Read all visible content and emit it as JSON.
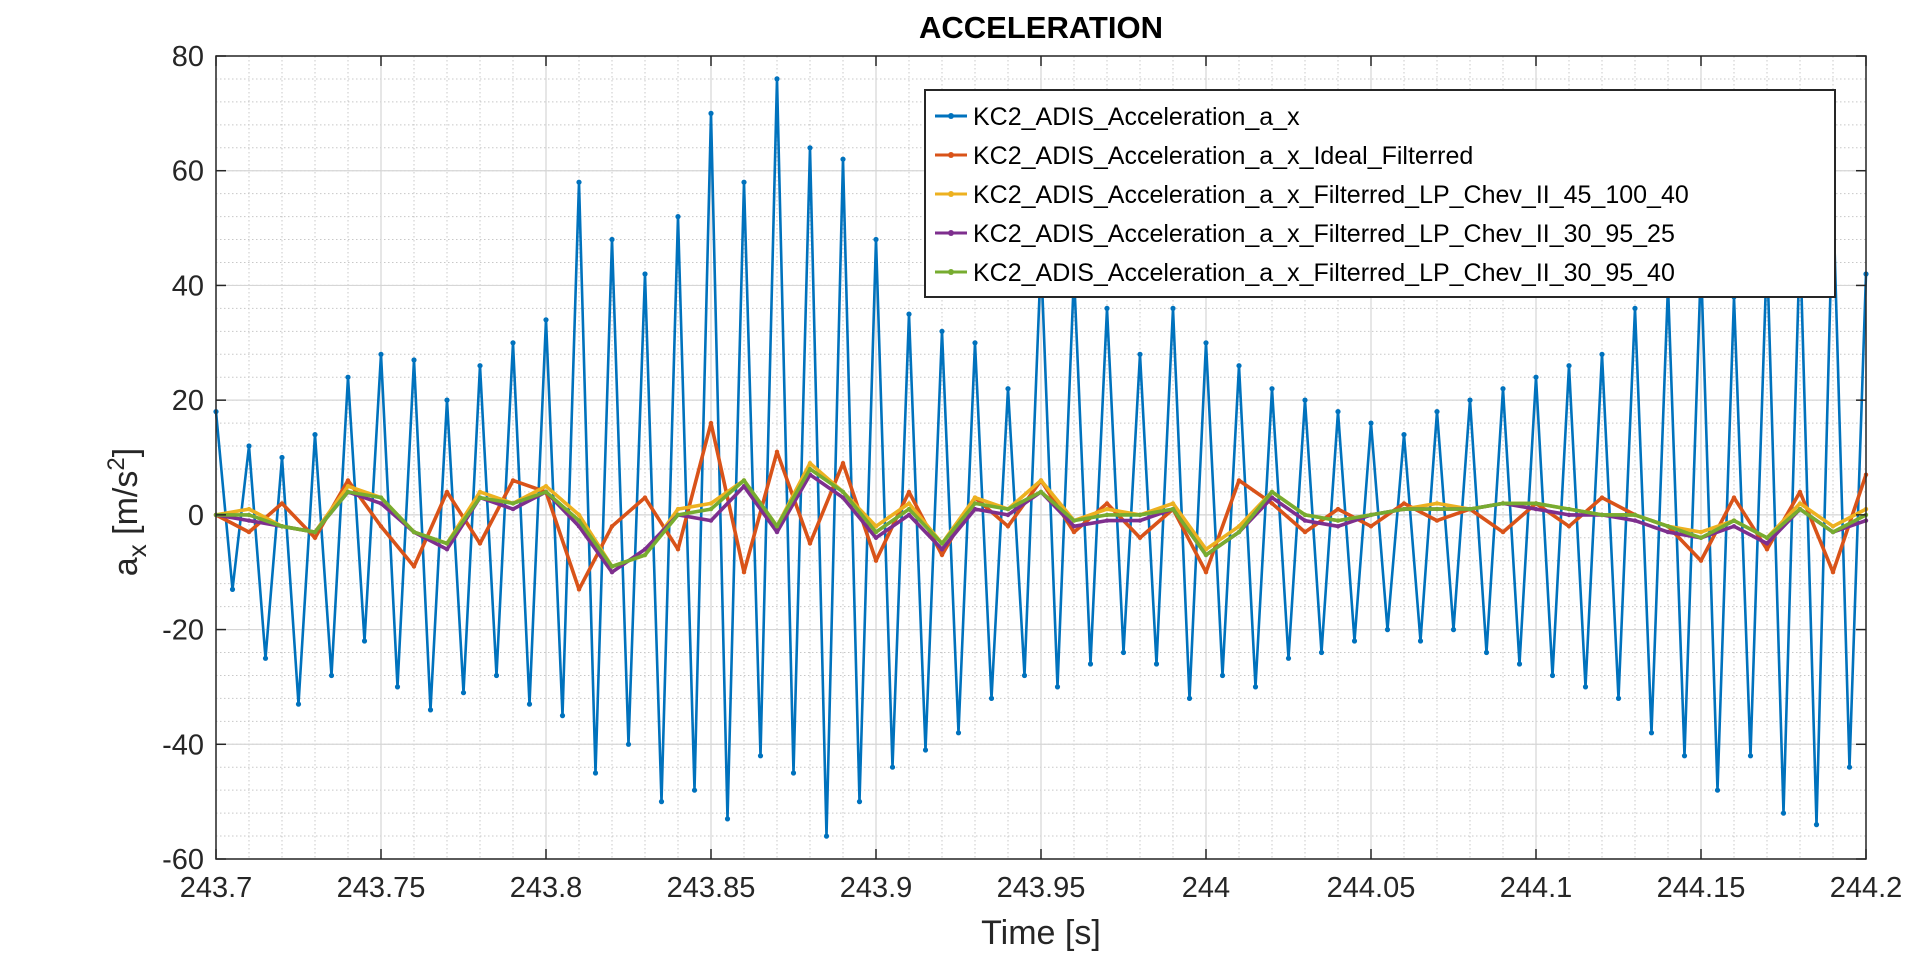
{
  "chart_data": {
    "type": "line",
    "title": "ACCELERATION",
    "xlabel": "Time [s]",
    "ylabel": "a_x [m/s^2]",
    "ylabel_parts": {
      "base": "a",
      "sub": "x",
      "unit_open": " [m/s",
      "sup": "2",
      "unit_close": "]"
    },
    "xlim": [
      243.7,
      244.2
    ],
    "ylim": [
      -60,
      80
    ],
    "x_ticks": [
      243.7,
      243.75,
      243.8,
      243.85,
      243.9,
      243.95,
      244.0,
      244.05,
      244.1,
      244.15,
      244.2
    ],
    "x_tick_labels": [
      "243.7",
      "243.75",
      "243.8",
      "243.85",
      "243.9",
      "243.95",
      "244",
      "244.05",
      "244.1",
      "244.15",
      "244.2"
    ],
    "y_ticks": [
      -60,
      -40,
      -20,
      0,
      20,
      40,
      60,
      80
    ],
    "y_tick_labels": [
      "-60",
      "-40",
      "-20",
      "0",
      "20",
      "40",
      "60",
      "80"
    ],
    "grid": true,
    "minor_grid": true,
    "legend_position": "top-right",
    "series": [
      {
        "name": "KC2_ADIS_Acceleration_a_x",
        "color": "#0072BD",
        "x": [
          243.7,
          243.705,
          243.71,
          243.715,
          243.72,
          243.725,
          243.73,
          243.735,
          243.74,
          243.745,
          243.75,
          243.755,
          243.76,
          243.765,
          243.77,
          243.775,
          243.78,
          243.785,
          243.79,
          243.795,
          243.8,
          243.805,
          243.81,
          243.815,
          243.82,
          243.825,
          243.83,
          243.835,
          243.84,
          243.845,
          243.85,
          243.855,
          243.86,
          243.865,
          243.87,
          243.875,
          243.88,
          243.885,
          243.89,
          243.895,
          243.9,
          243.905,
          243.91,
          243.915,
          243.92,
          243.925,
          243.93,
          243.935,
          243.94,
          243.945,
          243.95,
          243.955,
          243.96,
          243.965,
          243.97,
          243.975,
          243.98,
          243.985,
          243.99,
          243.995,
          244.0,
          244.005,
          244.01,
          244.015,
          244.02,
          244.025,
          244.03,
          244.035,
          244.04,
          244.045,
          244.05,
          244.055,
          244.06,
          244.065,
          244.07,
          244.075,
          244.08,
          244.085,
          244.09,
          244.095,
          244.1,
          244.105,
          244.11,
          244.115,
          244.12,
          244.125,
          244.13,
          244.135,
          244.14,
          244.145,
          244.15,
          244.155,
          244.16,
          244.165,
          244.17,
          244.175,
          244.18,
          244.185,
          244.19,
          244.195,
          244.2
        ],
        "y": [
          18,
          -13,
          12,
          -25,
          10,
          -33,
          14,
          -28,
          24,
          -22,
          28,
          -30,
          27,
          -34,
          20,
          -31,
          26,
          -28,
          30,
          -33,
          34,
          -35,
          58,
          -45,
          48,
          -40,
          42,
          -50,
          52,
          -48,
          70,
          -53,
          58,
          -42,
          76,
          -45,
          64,
          -56,
          62,
          -50,
          48,
          -44,
          35,
          -41,
          32,
          -38,
          30,
          -32,
          22,
          -28,
          45,
          -30,
          42,
          -26,
          36,
          -24,
          28,
          -26,
          36,
          -32,
          30,
          -28,
          26,
          -30,
          22,
          -25,
          20,
          -24,
          18,
          -22,
          16,
          -20,
          14,
          -22,
          18,
          -20,
          20,
          -24,
          22,
          -26,
          24,
          -28,
          26,
          -30,
          28,
          -32,
          36,
          -38,
          40,
          -42,
          44,
          -48,
          38,
          -42,
          46,
          -52,
          48,
          -54,
          56,
          -44,
          42
        ]
      },
      {
        "name": "KC2_ADIS_Acceleration_a_x_Ideal_Filterred",
        "color": "#D95319",
        "x": [
          243.7,
          243.71,
          243.72,
          243.73,
          243.74,
          243.75,
          243.76,
          243.77,
          243.78,
          243.79,
          243.8,
          243.81,
          243.82,
          243.83,
          243.84,
          243.85,
          243.86,
          243.87,
          243.88,
          243.89,
          243.9,
          243.91,
          243.92,
          243.93,
          243.94,
          243.95,
          243.96,
          243.97,
          243.98,
          243.99,
          244.0,
          244.01,
          244.02,
          244.03,
          244.04,
          244.05,
          244.06,
          244.07,
          244.08,
          244.09,
          244.1,
          244.11,
          244.12,
          244.13,
          244.14,
          244.15,
          244.16,
          244.17,
          244.18,
          244.19,
          244.2
        ],
        "y": [
          0,
          -3,
          2,
          -4,
          6,
          -2,
          -9,
          4,
          -5,
          6,
          4,
          -13,
          -2,
          3,
          -6,
          16,
          -10,
          11,
          -5,
          9,
          -8,
          4,
          -7,
          3,
          -2,
          6,
          -3,
          2,
          -4,
          1,
          -10,
          6,
          2,
          -3,
          1,
          -2,
          2,
          -1,
          1,
          -3,
          2,
          -2,
          3,
          0,
          -2,
          -8,
          3,
          -6,
          4,
          -10,
          7
        ]
      },
      {
        "name": "KC2_ADIS_Acceleration_a_x_Filterred_LP_Chev_II_45_100_40",
        "color": "#EDB120",
        "x": [
          243.7,
          243.71,
          243.72,
          243.73,
          243.74,
          243.75,
          243.76,
          243.77,
          243.78,
          243.79,
          243.8,
          243.81,
          243.82,
          243.83,
          243.84,
          243.85,
          243.86,
          243.87,
          243.88,
          243.89,
          243.9,
          243.91,
          243.92,
          243.93,
          243.94,
          243.95,
          243.96,
          243.97,
          243.98,
          243.99,
          244.0,
          244.01,
          244.02,
          244.03,
          244.04,
          244.05,
          244.06,
          244.07,
          244.08,
          244.09,
          244.1,
          244.11,
          244.12,
          244.13,
          244.14,
          244.15,
          244.16,
          244.17,
          244.18,
          244.19,
          244.2
        ],
        "y": [
          0,
          1,
          -2,
          -3,
          5,
          3,
          -3,
          -5,
          4,
          2,
          5,
          0,
          -9,
          -7,
          1,
          2,
          6,
          -2,
          9,
          4,
          -2,
          2,
          -5,
          3,
          1,
          6,
          -1,
          1,
          0,
          2,
          -6,
          -2,
          4,
          0,
          -1,
          0,
          1,
          2,
          1,
          2,
          2,
          1,
          0,
          0,
          -2,
          -3,
          -1,
          -4,
          2,
          -2,
          1
        ]
      },
      {
        "name": "KC2_ADIS_Acceleration_a_x_Filterred_LP_Chev_II_30_95_25",
        "color": "#7E2F8E",
        "x": [
          243.7,
          243.71,
          243.72,
          243.73,
          243.74,
          243.75,
          243.76,
          243.77,
          243.78,
          243.79,
          243.8,
          243.81,
          243.82,
          243.83,
          243.84,
          243.85,
          243.86,
          243.87,
          243.88,
          243.89,
          243.9,
          243.91,
          243.92,
          243.93,
          243.94,
          243.95,
          243.96,
          243.97,
          243.98,
          243.99,
          244.0,
          244.01,
          244.02,
          244.03,
          244.04,
          244.05,
          244.06,
          244.07,
          244.08,
          244.09,
          244.1,
          244.11,
          244.12,
          244.13,
          244.14,
          244.15,
          244.16,
          244.17,
          244.18,
          244.19,
          244.2
        ],
        "y": [
          0,
          -1,
          -2,
          -3,
          4,
          2,
          -3,
          -6,
          3,
          1,
          4,
          -2,
          -10,
          -6,
          0,
          -1,
          5,
          -3,
          7,
          3,
          -4,
          0,
          -6,
          1,
          0,
          4,
          -2,
          -1,
          -1,
          1,
          -7,
          -3,
          3,
          -1,
          -2,
          0,
          1,
          1,
          1,
          2,
          1,
          0,
          0,
          -1,
          -3,
          -4,
          -2,
          -5,
          1,
          -3,
          -1
        ]
      },
      {
        "name": "KC2_ADIS_Acceleration_a_x_Filterred_LP_Chev_II_30_95_40",
        "color": "#77AC30",
        "x": [
          243.7,
          243.71,
          243.72,
          243.73,
          243.74,
          243.75,
          243.76,
          243.77,
          243.78,
          243.79,
          243.8,
          243.81,
          243.82,
          243.83,
          243.84,
          243.85,
          243.86,
          243.87,
          243.88,
          243.89,
          243.9,
          243.91,
          243.92,
          243.93,
          243.94,
          243.95,
          243.96,
          243.97,
          243.98,
          243.99,
          244.0,
          244.01,
          244.02,
          244.03,
          244.04,
          244.05,
          244.06,
          244.07,
          244.08,
          244.09,
          244.1,
          244.11,
          244.12,
          244.13,
          244.14,
          244.15,
          244.16,
          244.17,
          244.18,
          244.19,
          244.2
        ],
        "y": [
          0,
          0,
          -2,
          -3,
          4,
          3,
          -3,
          -5,
          3,
          2,
          4,
          -1,
          -9,
          -7,
          0,
          1,
          6,
          -2,
          8,
          4,
          -3,
          1,
          -5,
          2,
          1,
          4,
          -1,
          0,
          0,
          1,
          -7,
          -3,
          4,
          0,
          -1,
          0,
          1,
          1,
          1,
          2,
          2,
          1,
          0,
          0,
          -2,
          -4,
          -1,
          -4,
          1,
          -3,
          0
        ]
      }
    ]
  }
}
